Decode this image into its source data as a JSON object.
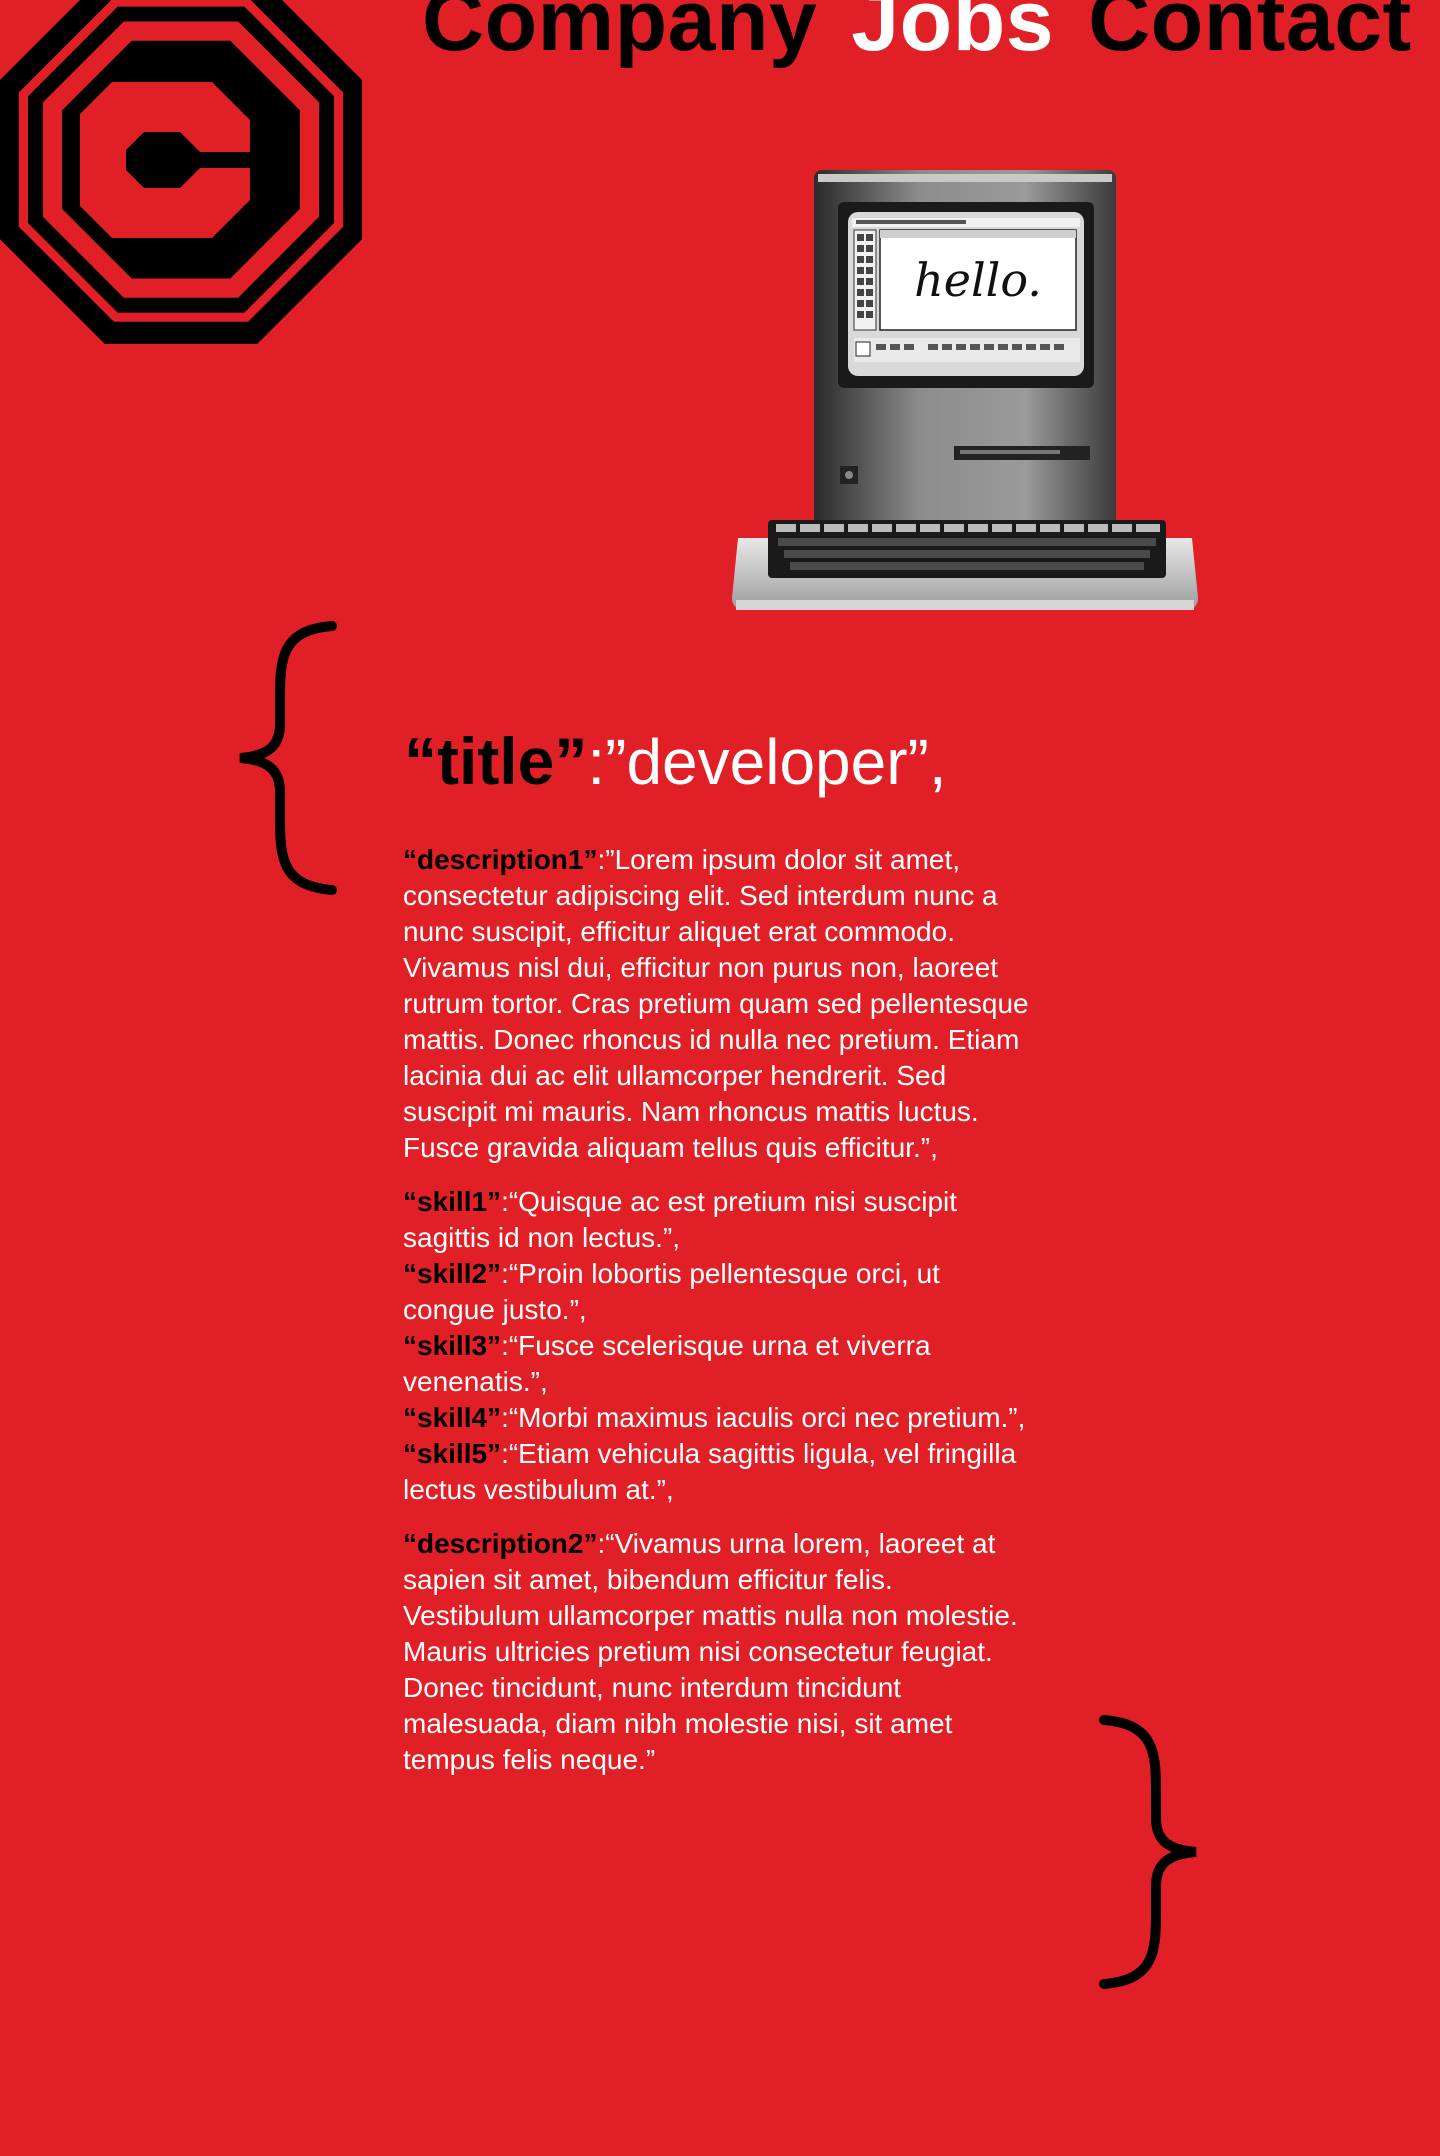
{
  "nav": {
    "items": [
      {
        "label": "Company",
        "active": false
      },
      {
        "label": "Jobs",
        "active": true
      },
      {
        "label": "Contact",
        "active": false
      }
    ]
  },
  "computer_image": {
    "screen_text": "hello."
  },
  "json_card": {
    "open_brace": "{",
    "close_brace": "}",
    "title_key": "“title”",
    "title_colon": ":",
    "title_value": "”developer”,",
    "description1_key": "“description1”",
    "description1_value": ":”Lorem ipsum dolor sit amet, consectetur adipiscing elit. Sed interdum nunc a nunc suscipit, efficitur aliquet erat commodo. Vivamus nisl dui, efficitur non purus non, laoreet rutrum tortor. Cras pretium quam sed pellentesque mattis. Donec rhoncus id nulla nec pretium. Etiam lacinia dui ac elit ullamcorper hendrerit. Sed suscipit mi mauris. Nam rhoncus mattis luctus. Fusce gravida aliquam tellus quis efficitur.”,",
    "skills": [
      {
        "key": "“skill1”",
        "value": ":“Quisque ac est pretium nisi suscipit sagittis id non lectus.”,"
      },
      {
        "key": "“skill2”",
        "value": ":“Proin lobortis pellentesque orci, ut congue justo.”,"
      },
      {
        "key": "“skill3”",
        "value": ":“Fusce scelerisque urna et viverra venenatis.”,"
      },
      {
        "key": "“skill4”",
        "value": ":“Morbi maximus iaculis orci nec pretium.”,"
      },
      {
        "key": "“skill5”",
        "value": ":“Etiam vehicula sagittis ligula, vel fringilla lectus vestibulum at.”,"
      }
    ],
    "description2_key": "“description2”",
    "description2_value": ":“Vivamus urna lorem, laoreet at sapien sit amet, bibendum efficitur felis. Vestibulum ullamcorper mattis nulla non molestie. Mauris ultricies pretium nisi consectetur feugiat. Donec tincidunt, nunc interdum tincidunt malesuada, diam nibh molestie nisi, sit amet tempus felis neque.”"
  },
  "colors": {
    "background": "#e01f26",
    "key_text": "#000000",
    "value_text": "#ffffff",
    "active_nav": "#ffffff"
  },
  "icons": {
    "logo": "octagon-c-logo-icon",
    "computer": "macintosh-computer-icon"
  }
}
